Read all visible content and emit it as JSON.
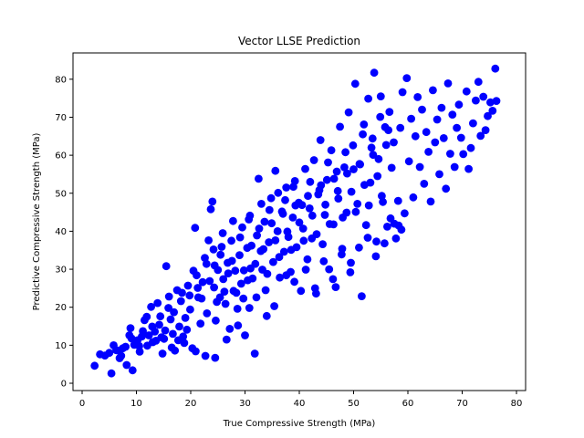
{
  "chart_data": {
    "type": "scatter",
    "title": "Vector LLSE Prediction",
    "xlabel": "True Compressive Strength (MPa)",
    "ylabel": "Predictive Compressive Strength (MPa)",
    "xlim": [
      0,
      80
    ],
    "ylim": [
      0,
      85
    ],
    "xticks": [
      0,
      10,
      20,
      30,
      40,
      50,
      60,
      70,
      80
    ],
    "yticks": [
      0,
      10,
      20,
      30,
      40,
      50,
      60,
      70,
      80
    ],
    "grid": false,
    "marker_color": "#0000ff",
    "series": [
      {
        "points": [
          [
            2.3,
            4.6
          ],
          [
            3.3,
            7.6
          ],
          [
            4.2,
            7.3
          ],
          [
            5.0,
            8.0
          ],
          [
            5.4,
            2.6
          ],
          [
            5.8,
            10.0
          ],
          [
            6.3,
            8.7
          ],
          [
            6.9,
            6.6
          ],
          [
            7.5,
            9.2
          ],
          [
            8.2,
            4.8
          ],
          [
            8.7,
            12.6
          ],
          [
            8.9,
            14.5
          ],
          [
            9.3,
            3.4
          ],
          [
            9.6,
            10.1
          ],
          [
            10.2,
            11.3
          ],
          [
            10.6,
            8.3
          ],
          [
            11.0,
            12.3
          ],
          [
            11.5,
            16.6
          ],
          [
            11.9,
            17.5
          ],
          [
            12.3,
            12.6
          ],
          [
            12.7,
            20.1
          ],
          [
            13.0,
            10.8
          ],
          [
            13.4,
            13.6
          ],
          [
            13.9,
            21.1
          ],
          [
            14.2,
            15.4
          ],
          [
            14.6,
            12.1
          ],
          [
            15.1,
            11.7
          ],
          [
            15.5,
            30.8
          ],
          [
            15.9,
            19.8
          ],
          [
            16.3,
            16.8
          ],
          [
            16.7,
            13.0
          ],
          [
            17.1,
            8.6
          ],
          [
            17.5,
            24.5
          ],
          [
            17.9,
            14.9
          ],
          [
            18.2,
            21.6
          ],
          [
            18.6,
            12.3
          ],
          [
            19.0,
            17.2
          ],
          [
            19.5,
            25.7
          ],
          [
            19.9,
            19.4
          ],
          [
            20.3,
            9.2
          ],
          [
            20.8,
            40.9
          ],
          [
            21.1,
            28.4
          ],
          [
            21.4,
            22.6
          ],
          [
            21.8,
            15.7
          ],
          [
            22.2,
            26.6
          ],
          [
            22.6,
            33.0
          ],
          [
            23.0,
            18.4
          ],
          [
            23.3,
            37.6
          ],
          [
            23.7,
            45.8
          ],
          [
            24.0,
            47.8
          ],
          [
            24.3,
            25.2
          ],
          [
            24.6,
            16.5
          ],
          [
            25.0,
            29.8
          ],
          [
            25.4,
            22.6
          ],
          [
            25.7,
            35.9
          ],
          [
            26.0,
            27.4
          ],
          [
            26.4,
            20.9
          ],
          [
            26.8,
            31.7
          ],
          [
            27.2,
            14.3
          ],
          [
            27.5,
            37.5
          ],
          [
            27.9,
            24.3
          ],
          [
            28.2,
            29.6
          ],
          [
            28.6,
            19.6
          ],
          [
            29.0,
            33.7
          ],
          [
            29.3,
            26.2
          ],
          [
            29.7,
            22.3
          ],
          [
            30.0,
            12.6
          ],
          [
            30.4,
            35.6
          ],
          [
            30.7,
            43.1
          ],
          [
            31.0,
            30.2
          ],
          [
            31.4,
            27.6
          ],
          [
            31.8,
            7.8
          ],
          [
            32.2,
            38.9
          ],
          [
            32.5,
            53.8
          ],
          [
            32.9,
            34.8
          ],
          [
            33.2,
            29.9
          ],
          [
            33.6,
            42.5
          ],
          [
            34.0,
            17.7
          ],
          [
            34.4,
            37.1
          ],
          [
            34.8,
            48.7
          ],
          [
            35.2,
            31.9
          ],
          [
            35.6,
            55.9
          ],
          [
            36.0,
            40.0
          ],
          [
            36.4,
            27.8
          ],
          [
            36.8,
            45.2
          ],
          [
            37.2,
            34.6
          ],
          [
            37.6,
            51.5
          ],
          [
            38.0,
            38.5
          ],
          [
            38.4,
            29.3
          ],
          [
            38.8,
            43.6
          ],
          [
            39.2,
            53.2
          ],
          [
            39.5,
            35.8
          ],
          [
            39.9,
            47.5
          ],
          [
            40.3,
            24.3
          ],
          [
            40.7,
            40.7
          ],
          [
            41.1,
            56.4
          ],
          [
            41.5,
            32.6
          ],
          [
            41.9,
            46.0
          ],
          [
            42.3,
            38.1
          ],
          [
            42.7,
            58.7
          ],
          [
            43.1,
            23.6
          ],
          [
            43.5,
            49.7
          ],
          [
            43.9,
            64.0
          ],
          [
            44.3,
            36.6
          ],
          [
            44.7,
            44.3
          ],
          [
            45.1,
            53.5
          ],
          [
            45.5,
            30.0
          ],
          [
            45.9,
            61.3
          ],
          [
            46.3,
            41.8
          ],
          [
            46.7,
            25.3
          ],
          [
            47.1,
            50.6
          ],
          [
            47.5,
            67.5
          ],
          [
            47.9,
            35.4
          ],
          [
            48.3,
            56.8
          ],
          [
            48.7,
            44.9
          ],
          [
            49.1,
            71.3
          ],
          [
            49.5,
            31.7
          ],
          [
            49.9,
            62.6
          ],
          [
            50.3,
            78.8
          ],
          [
            50.7,
            47.2
          ],
          [
            51.1,
            57.7
          ],
          [
            51.5,
            22.9
          ],
          [
            51.9,
            68.1
          ],
          [
            52.3,
            41.6
          ],
          [
            52.7,
            74.9
          ],
          [
            53.1,
            52.8
          ],
          [
            53.5,
            64.4
          ],
          [
            53.8,
            81.7
          ],
          [
            54.2,
            37.3
          ],
          [
            54.6,
            59.0
          ],
          [
            55.0,
            75.5
          ],
          [
            55.4,
            47.7
          ],
          [
            55.8,
            67.4
          ],
          [
            56.2,
            41.2
          ],
          [
            56.6,
            71.4
          ],
          [
            57.0,
            56.7
          ],
          [
            57.4,
            63.4
          ],
          [
            57.8,
            38.1
          ],
          [
            58.2,
            48.0
          ],
          [
            58.6,
            67.2
          ],
          [
            59.0,
            76.6
          ],
          [
            59.4,
            44.7
          ],
          [
            59.8,
            80.3
          ],
          [
            60.2,
            58.4
          ],
          [
            60.6,
            69.6
          ],
          [
            61.0,
            48.9
          ],
          [
            61.4,
            65.0
          ],
          [
            61.8,
            75.3
          ],
          [
            62.2,
            56.9
          ],
          [
            62.6,
            72.0
          ],
          [
            63.0,
            52.5
          ],
          [
            63.4,
            66.1
          ],
          [
            63.8,
            60.9
          ],
          [
            64.2,
            47.8
          ],
          [
            64.6,
            77.1
          ],
          [
            65.0,
            63.4
          ],
          [
            65.4,
            69.4
          ],
          [
            65.8,
            55.0
          ],
          [
            66.2,
            72.5
          ],
          [
            66.6,
            64.5
          ],
          [
            67.0,
            51.2
          ],
          [
            67.4,
            78.9
          ],
          [
            67.8,
            60.4
          ],
          [
            68.2,
            70.7
          ],
          [
            68.6,
            56.9
          ],
          [
            69.0,
            67.2
          ],
          [
            69.4,
            73.3
          ],
          [
            69.8,
            64.6
          ],
          [
            70.2,
            60.3
          ],
          [
            70.8,
            76.8
          ],
          [
            71.2,
            56.4
          ],
          [
            71.6,
            61.9
          ],
          [
            72.0,
            68.4
          ],
          [
            72.5,
            74.4
          ],
          [
            73.0,
            79.3
          ],
          [
            73.4,
            65.1
          ],
          [
            73.9,
            75.4
          ],
          [
            74.3,
            66.6
          ],
          [
            74.7,
            70.3
          ],
          [
            75.2,
            73.9
          ],
          [
            75.6,
            71.7
          ],
          [
            76.1,
            82.8
          ],
          [
            76.3,
            74.3
          ],
          [
            6.8,
            8.6
          ],
          [
            7.2,
            7.2
          ],
          [
            8.0,
            9.6
          ],
          [
            9.1,
            11.8
          ],
          [
            10.5,
            9.8
          ],
          [
            11.2,
            13.7
          ],
          [
            12.0,
            9.9
          ],
          [
            12.9,
            14.9
          ],
          [
            13.6,
            11.2
          ],
          [
            14.4,
            17.6
          ],
          [
            15.3,
            13.9
          ],
          [
            16.0,
            22.8
          ],
          [
            16.9,
            18.7
          ],
          [
            17.7,
            11.3
          ],
          [
            18.4,
            23.8
          ],
          [
            19.3,
            14.1
          ],
          [
            19.8,
            23.1
          ],
          [
            20.5,
            29.6
          ],
          [
            21.3,
            25.1
          ],
          [
            22.0,
            22.3
          ],
          [
            22.9,
            31.4
          ],
          [
            23.5,
            26.9
          ],
          [
            24.2,
            35.2
          ],
          [
            24.8,
            21.4
          ],
          [
            25.5,
            33.8
          ],
          [
            26.2,
            24.1
          ],
          [
            26.9,
            28.9
          ],
          [
            27.6,
            32.2
          ],
          [
            28.4,
            23.8
          ],
          [
            29.1,
            38.4
          ],
          [
            29.8,
            29.7
          ],
          [
            30.5,
            27.1
          ],
          [
            31.2,
            36.2
          ],
          [
            31.9,
            31.4
          ],
          [
            32.6,
            40.7
          ],
          [
            33.4,
            35.3
          ],
          [
            34.1,
            28.8
          ],
          [
            34.9,
            42.1
          ],
          [
            35.6,
            37.6
          ],
          [
            36.3,
            33.2
          ],
          [
            37.0,
            44.6
          ],
          [
            37.8,
            39.9
          ],
          [
            38.5,
            35.1
          ],
          [
            39.3,
            46.8
          ],
          [
            40.0,
            42.3
          ],
          [
            40.8,
            37.5
          ],
          [
            41.6,
            49.3
          ],
          [
            42.4,
            44.1
          ],
          [
            43.2,
            39.2
          ],
          [
            44.0,
            52.1
          ],
          [
            44.8,
            47.0
          ],
          [
            45.6,
            41.9
          ],
          [
            46.4,
            53.8
          ],
          [
            47.2,
            48.6
          ],
          [
            48.0,
            43.6
          ],
          [
            48.8,
            55.2
          ],
          [
            49.6,
            50.4
          ],
          [
            50.4,
            45.1
          ],
          [
            51.2,
            57.6
          ],
          [
            52.0,
            52.2
          ],
          [
            52.8,
            46.8
          ],
          [
            53.6,
            60.1
          ],
          [
            54.4,
            54.5
          ],
          [
            55.2,
            49.3
          ],
          [
            56.0,
            62.7
          ],
          [
            56.8,
            43.4
          ],
          [
            57.5,
            42.0
          ],
          [
            58.3,
            41.5
          ],
          [
            58.8,
            40.4
          ],
          [
            24.4,
            31.0
          ],
          [
            25.9,
            39.5
          ],
          [
            27.8,
            42.7
          ],
          [
            29.5,
            41.0
          ],
          [
            30.9,
            44.1
          ],
          [
            33.0,
            47.2
          ],
          [
            34.5,
            45.6
          ],
          [
            36.1,
            50.1
          ],
          [
            37.4,
            48.2
          ],
          [
            38.9,
            51.7
          ],
          [
            40.5,
            46.9
          ],
          [
            42.0,
            53.0
          ],
          [
            43.7,
            50.8
          ],
          [
            45.3,
            58.1
          ],
          [
            46.9,
            55.7
          ],
          [
            48.5,
            60.8
          ],
          [
            50.0,
            56.3
          ],
          [
            51.7,
            65.5
          ],
          [
            53.3,
            62.0
          ],
          [
            54.9,
            70.1
          ],
          [
            56.4,
            66.6
          ],
          [
            14.8,
            7.8
          ],
          [
            16.5,
            9.4
          ],
          [
            18.8,
            10.6
          ],
          [
            20.9,
            8.4
          ],
          [
            22.7,
            7.2
          ],
          [
            24.5,
            6.7
          ],
          [
            26.6,
            11.5
          ],
          [
            28.7,
            15.2
          ],
          [
            30.8,
            19.8
          ],
          [
            32.1,
            22.6
          ],
          [
            33.8,
            24.5
          ],
          [
            35.4,
            20.3
          ],
          [
            37.6,
            28.4
          ],
          [
            39.1,
            26.7
          ],
          [
            41.2,
            29.9
          ],
          [
            42.9,
            25.0
          ],
          [
            44.5,
            32.1
          ],
          [
            46.2,
            27.4
          ],
          [
            47.8,
            33.9
          ],
          [
            49.4,
            29.2
          ],
          [
            51.0,
            35.7
          ],
          [
            52.6,
            38.3
          ],
          [
            54.1,
            33.4
          ],
          [
            55.7,
            36.8
          ]
        ]
      }
    ]
  }
}
